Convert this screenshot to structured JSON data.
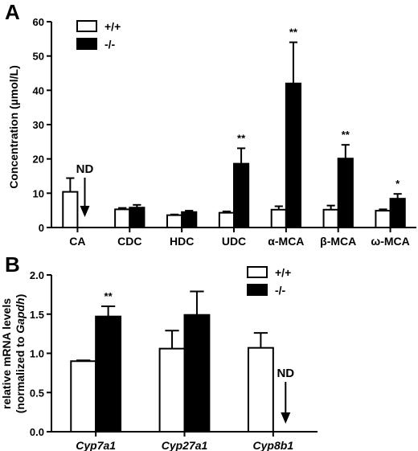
{
  "chart_data": [
    {
      "type": "bar",
      "panel": "A",
      "ylabel": "Concentration (µmol/L)",
      "ylim": [
        0,
        60
      ],
      "yticks": [
        "0",
        "10",
        "20",
        "30",
        "40",
        "50",
        "60"
      ],
      "categories": [
        "CA",
        "CDC",
        "HDC",
        "UDC",
        "α-MCA",
        "β-MCA",
        "ω-MCA"
      ],
      "series": [
        {
          "name": "+/+",
          "fill": "#ffffff",
          "values": [
            10.4,
            5.3,
            3.6,
            4.3,
            5.2,
            5.2,
            4.9
          ],
          "errors": [
            4.0,
            0.4,
            0.2,
            0.4,
            1.0,
            1.2,
            0.4
          ]
        },
        {
          "name": "-/-",
          "fill": "#000000",
          "values": [
            null,
            5.8,
            4.5,
            18.6,
            42.0,
            20.1,
            8.4
          ],
          "errors": [
            null,
            0.8,
            0.4,
            4.5,
            12.0,
            4.0,
            1.4
          ]
        }
      ],
      "significance": [
        "",
        "",
        "",
        "**",
        "**",
        "**",
        "*"
      ],
      "annotation": "ND",
      "legend_position": "top-left"
    },
    {
      "type": "bar",
      "panel": "B",
      "ylabel": "relative mRNA levels",
      "ylabel2_prefix": "(normalized to ",
      "ylabel2_gene": "Gapdh",
      "ylabel2_suffix": ")",
      "ylim": [
        0,
        2.0
      ],
      "yticks": [
        "0.0",
        "0.5",
        "1.0",
        "1.5",
        "2.0"
      ],
      "categories": [
        "Cyp7a1",
        "Cyp27a1",
        "Cyp8b1"
      ],
      "series": [
        {
          "name": "+/+",
          "fill": "#ffffff",
          "values": [
            0.9,
            1.06,
            1.07
          ],
          "errors": [
            0.01,
            0.23,
            0.19
          ]
        },
        {
          "name": "-/-",
          "fill": "#000000",
          "values": [
            1.47,
            1.49,
            null
          ],
          "errors": [
            0.13,
            0.3,
            null
          ]
        }
      ],
      "significance": [
        "**",
        "",
        ""
      ],
      "annotation": "ND",
      "legend_position": "top-right"
    }
  ]
}
